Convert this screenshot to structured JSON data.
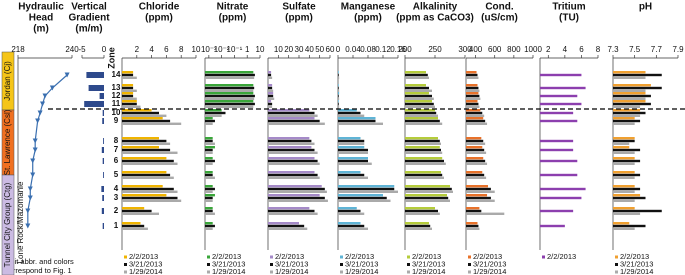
{
  "units": [
    {
      "label": "Jordan (Cj)",
      "color": "#f5c518"
    },
    {
      "label": "St. Lawrence (Csl)",
      "color": "#f07020"
    },
    {
      "label": "Tunnel City Group (Ctg)",
      "color": "#cbbbe3"
    },
    {
      "label": "Lone Rock/Mazomanie",
      "color": "#ffffff"
    }
  ],
  "note": [
    "Unit abbr. and colors",
    "correspond to Fig. 1"
  ],
  "chart_data": [
    {
      "type": "line",
      "title": [
        "Hydraulic",
        "Head",
        "(m)"
      ],
      "color": "#3a6fb0",
      "xlim": [
        218,
        240
      ],
      "xticks": [
        218,
        240
      ],
      "values": [
        222,
        222,
        223,
        223,
        224,
        224,
        225,
        225,
        226,
        227,
        228,
        229,
        232,
        238
      ]
    },
    {
      "type": "barh",
      "title": [
        "Vertical",
        "Gradient",
        "(m/m)"
      ],
      "category_label": "Zone",
      "color": "#2e4a8c",
      "xlim": [
        -5,
        0
      ],
      "xticks": [
        -5,
        0
      ],
      "categories": [
        "1",
        "2",
        "3",
        "4",
        "5",
        "6",
        "7",
        "8",
        "9",
        "10",
        "11",
        "12",
        "13",
        "14"
      ],
      "values": [
        -0.3,
        -0.5,
        -0.4,
        -0.6,
        -0.2,
        -0.3,
        -0.5,
        -0.2,
        -0.4,
        -0.3,
        -4.5,
        -1,
        -3.5,
        -4
      ]
    },
    {
      "type": "grouped",
      "title": [
        "Chloride",
        "(ppm)"
      ],
      "xlim": [
        0,
        10
      ],
      "xticks": [
        2,
        4,
        6,
        8,
        10
      ],
      "series": [
        {
          "name": "2/2/2013",
          "color": "#f0b400",
          "values": [
            2.5,
            3,
            6,
            5.5,
            6,
            6,
            5,
            5,
            5.5,
            4,
            2,
            1.5,
            1.5,
            1.5
          ]
        },
        {
          "name": "3/21/2013",
          "color": "#111111",
          "values": [
            3,
            4,
            7.5,
            7,
            6.5,
            7,
            6.5,
            6,
            6.5,
            5,
            2,
            1.5,
            1.5,
            1.5
          ]
        },
        {
          "name": "1/29/2014",
          "color": "#aaaaaa",
          "values": [
            3.5,
            5,
            8,
            7.5,
            7,
            7.5,
            7.5,
            6.5,
            8,
            6,
            2.5,
            2,
            2,
            2
          ]
        }
      ]
    },
    {
      "type": "grouped",
      "title": [
        "Nitrate",
        "(ppm)"
      ],
      "log": true,
      "xlim": [
        0.0005,
        10
      ],
      "xticks": [
        {
          "value": 0.001,
          "label": "10⁻³"
        },
        {
          "value": 0.01,
          "label": "10⁻²"
        },
        {
          "value": 0.1,
          "label": "10⁻¹"
        },
        1,
        10
      ],
      "series": [
        {
          "name": "2/2/2013",
          "color": "#3aa63a",
          "values": [
            0.002,
            0.002,
            0.003,
            0.002,
            0.002,
            0.002,
            0.003,
            0.002,
            0.002,
            0.01,
            3,
            3,
            3,
            3
          ]
        },
        {
          "name": "3/21/2013",
          "color": "#111111",
          "values": [
            0.003,
            0.002,
            0.002,
            0.003,
            0.002,
            0.003,
            0.002,
            0.002,
            0.003,
            0.02,
            4,
            4,
            3.5,
            4
          ]
        },
        {
          "name": "1/29/2014",
          "color": "#aaaaaa",
          "values": [
            0.002,
            0.003,
            0.002,
            0.002,
            0.003,
            0.002,
            0.002,
            0.003,
            0.002,
            0.01,
            3,
            3.5,
            3,
            3.5
          ]
        }
      ]
    },
    {
      "type": "grouped",
      "title": [
        "Sulfate",
        "(ppm)"
      ],
      "xlim": [
        0,
        60
      ],
      "xticks": [
        10,
        20,
        30,
        40,
        50,
        60
      ],
      "series": [
        {
          "name": "2/2/2013",
          "color": "#a58ac8",
          "values": [
            30,
            40,
            50,
            52,
            45,
            45,
            42,
            40,
            45,
            40,
            3,
            5,
            4,
            3
          ]
        },
        {
          "name": "3/21/2013",
          "color": "#111111",
          "values": [
            35,
            45,
            55,
            55,
            48,
            48,
            45,
            42,
            50,
            45,
            4,
            5,
            4,
            3
          ]
        },
        {
          "name": "1/29/2014",
          "color": "#aaaaaa",
          "values": [
            38,
            48,
            58,
            57,
            50,
            50,
            48,
            45,
            55,
            48,
            4,
            6,
            5,
            4
          ]
        }
      ]
    },
    {
      "type": "grouped",
      "title": [
        "Manganese",
        "(ppm)"
      ],
      "xlim": [
        0,
        0.16
      ],
      "xticks": [
        0,
        0.04,
        0.08,
        0.12,
        0.16
      ],
      "series": [
        {
          "name": "2/2/2013",
          "color": "#5fb4d6",
          "values": [
            0.06,
            0.05,
            0.12,
            0.15,
            0.06,
            0.08,
            0.07,
            0.06,
            0.1,
            0.05,
            0.002,
            0.003,
            0.002,
            0.002
          ]
        },
        {
          "name": "3/21/2013",
          "color": "#111111",
          "values": [
            0.07,
            0.06,
            0.13,
            0.15,
            0.07,
            0.08,
            0.08,
            0.07,
            0.1,
            0.06,
            0.002,
            0.002,
            0.002,
            0.002
          ]
        },
        {
          "name": "1/29/2014",
          "color": "#aaaaaa",
          "values": [
            0.08,
            0.07,
            0.14,
            0.16,
            0.08,
            0.09,
            0.08,
            0.07,
            0.12,
            0.07,
            0.003,
            0.003,
            0.003,
            0.003
          ]
        }
      ]
    },
    {
      "type": "grouped",
      "title": [
        "Alkalinity",
        "(ppm as CaCO3)"
      ],
      "xlim": [
        200,
        300
      ],
      "xticks": [
        200,
        250,
        300
      ],
      "series": [
        {
          "name": "2/2/2013",
          "color": "#b5cc3b",
          "values": [
            240,
            250,
            270,
            275,
            260,
            262,
            258,
            255,
            255,
            250,
            245,
            240,
            235,
            235
          ]
        },
        {
          "name": "3/21/2013",
          "color": "#111111",
          "values": [
            242,
            255,
            272,
            278,
            262,
            265,
            260,
            258,
            258,
            252,
            248,
            245,
            240,
            238
          ]
        },
        {
          "name": "1/29/2014",
          "color": "#aaaaaa",
          "values": [
            245,
            258,
            275,
            280,
            265,
            268,
            262,
            260,
            262,
            255,
            250,
            248,
            245,
            240
          ]
        }
      ]
    },
    {
      "type": "grouped",
      "title": [
        "Cond.",
        "(uS/cm)"
      ],
      "xlim": [
        300,
        1000
      ],
      "xticks": [
        400,
        600,
        800,
        1000
      ],
      "series": [
        {
          "name": "2/2/2013",
          "color": "#e8722a",
          "values": [
            420,
            440,
            520,
            530,
            470,
            480,
            470,
            460,
            480,
            450,
            420,
            430,
            420,
            410
          ]
        },
        {
          "name": "3/21/2013",
          "color": "#111111",
          "values": [
            430,
            460,
            560,
            560,
            490,
            500,
            490,
            480,
            500,
            470,
            430,
            440,
            430,
            420
          ]
        },
        {
          "name": "1/29/2014",
          "color": "#aaaaaa",
          "values": [
            440,
            700,
            600,
            600,
            510,
            520,
            510,
            500,
            520,
            490,
            440,
            450,
            440,
            430
          ]
        }
      ]
    },
    {
      "type": "grouped",
      "title": [
        "Tritium",
        "(TU)"
      ],
      "xlim": [
        1,
        8
      ],
      "xticks": [
        2,
        4,
        6,
        8
      ],
      "series": [
        {
          "name": "2/2/2013",
          "color": "#8c3fae",
          "values": [
            4,
            5,
            6,
            6.5,
            5.5,
            5.5,
            5,
            5,
            5.5,
            5,
            6,
            5.5,
            6.5,
            6
          ]
        }
      ]
    },
    {
      "type": "grouped",
      "title": [
        "pH"
      ],
      "xlim": [
        7.3,
        7.9
      ],
      "xticks": [
        7.3,
        7.5,
        7.7,
        7.9
      ],
      "series": [
        {
          "name": "2/2/2013",
          "color": "#f0a030",
          "values": [
            7.45,
            7.5,
            7.55,
            7.5,
            7.5,
            7.5,
            7.45,
            7.5,
            7.5,
            7.55,
            7.6,
            7.6,
            7.65,
            7.6
          ]
        },
        {
          "name": "3/21/2013",
          "color": "#111111",
          "values": [
            7.6,
            7.75,
            7.6,
            7.55,
            7.55,
            7.55,
            7.55,
            7.5,
            7.55,
            7.6,
            7.65,
            7.65,
            7.75,
            7.75
          ]
        },
        {
          "name": "1/29/2014",
          "color": "#aaaaaa",
          "values": [
            7.5,
            7.55,
            7.5,
            7.5,
            7.5,
            7.5,
            7.5,
            7.45,
            7.5,
            7.55,
            7.55,
            7.6,
            7.6,
            7.6
          ]
        }
      ]
    }
  ]
}
